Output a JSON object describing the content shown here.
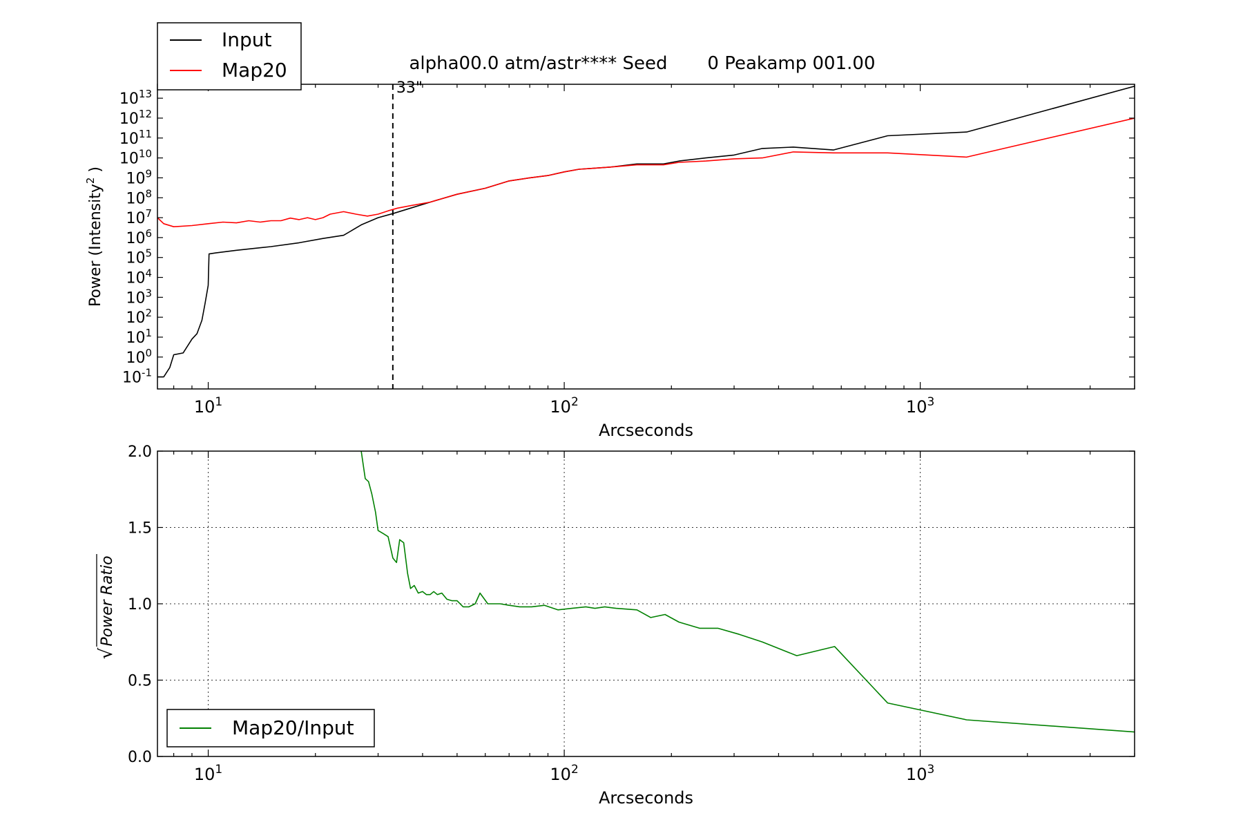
{
  "figure": {
    "title": "alpha00.0 atm/astr**** Seed       0 Peakamp 001.00"
  },
  "colors": {
    "input": "#000000",
    "map20": "#ff0000",
    "ratio": "#008000"
  },
  "chart_data": [
    {
      "type": "line",
      "title": "alpha00.0 atm/astr**** Seed       0 Peakamp 001.00",
      "xlabel": "Arcseconds",
      "ylabel": "Power (Intensity",
      "ylabel_sup": "2",
      "ylabel_tail": " )",
      "xscale": "log",
      "yscale": "log",
      "xlim": [
        7.2,
        4000
      ],
      "ylim": [
        0.025,
        50000000000000
      ],
      "grid": false,
      "legend": "top-left, outside axes",
      "xticks": [
        {
          "value": 10,
          "base": "10",
          "exp": "1"
        },
        {
          "value": 100,
          "base": "10",
          "exp": "2"
        },
        {
          "value": 1000,
          "base": "10",
          "exp": "3"
        }
      ],
      "yticks": [
        {
          "exp": -1,
          "label": "10",
          "sup": "-1"
        },
        {
          "exp": 0,
          "label": "10",
          "sup": "0"
        },
        {
          "exp": 1,
          "label": "10",
          "sup": "1"
        },
        {
          "exp": 2,
          "label": "10",
          "sup": "2"
        },
        {
          "exp": 3,
          "label": "10",
          "sup": "3"
        },
        {
          "exp": 4,
          "label": "10",
          "sup": "4"
        },
        {
          "exp": 5,
          "label": "10",
          "sup": "5"
        },
        {
          "exp": 6,
          "label": "10",
          "sup": "6"
        },
        {
          "exp": 7,
          "label": "10",
          "sup": "7"
        },
        {
          "exp": 8,
          "label": "10",
          "sup": "8"
        },
        {
          "exp": 9,
          "label": "10",
          "sup": "9"
        },
        {
          "exp": 10,
          "label": "10",
          "sup": "10"
        },
        {
          "exp": 11,
          "label": "10",
          "sup": "11"
        },
        {
          "exp": 12,
          "label": "10",
          "sup": "12"
        },
        {
          "exp": 13,
          "label": "10",
          "sup": "13"
        }
      ],
      "vline": {
        "x": 33,
        "label": "33\""
      },
      "series": [
        {
          "name": "Input",
          "color": "#000000",
          "x": [
            7.2,
            7.5,
            7.8,
            8.0,
            8.5,
            9.0,
            9.3,
            9.6,
            9.8,
            10.0,
            10.05,
            10.5,
            12,
            15,
            18,
            21,
            24,
            27,
            30,
            33,
            37,
            42,
            50,
            60,
            70,
            80,
            90,
            100,
            110,
            120,
            135,
            160,
            190,
            210,
            250,
            300,
            360,
            440,
            570,
            810,
            1350,
            4000
          ],
          "y": [
            0.1,
            0.1,
            0.3,
            1.3,
            1.6,
            8,
            15,
            70,
            500,
            4000,
            150000,
            170000,
            230000,
            350000,
            550000,
            900000,
            1300000,
            4500000,
            10000000,
            16000000,
            30000000,
            60000000,
            150000000,
            300000000,
            700000000,
            1000000000,
            1300000000,
            2000000000,
            2700000000,
            3000000000,
            3500000000,
            5000000000,
            5000000000,
            7000000000,
            10000000000,
            14000000000,
            30000000000,
            35000000000,
            25000000000,
            130000000000,
            200000000000,
            40000000000000
          ]
        },
        {
          "name": "Map20",
          "color": "#ff0000",
          "x": [
            7.2,
            7.5,
            8.0,
            9.0,
            10,
            11,
            12,
            13,
            14,
            15,
            16,
            17,
            18,
            19,
            20,
            21,
            22,
            24,
            26,
            28,
            30,
            32,
            34,
            37,
            42,
            50,
            60,
            70,
            80,
            90,
            100,
            110,
            120,
            135,
            160,
            190,
            210,
            250,
            300,
            360,
            440,
            570,
            810,
            1350,
            4000
          ],
          "y": [
            10000000,
            5000000,
            3500000,
            4000000,
            5000000,
            6000000,
            5500000,
            7000000,
            6000000,
            7000000,
            7000000,
            9500000,
            8000000,
            10000000,
            8000000,
            10000000,
            15000000,
            20000000,
            15000000,
            12000000,
            15000000,
            22000000,
            30000000,
            40000000,
            60000000,
            150000000,
            300000000,
            700000000,
            1000000000,
            1300000000,
            2000000000,
            2700000000,
            3000000000,
            3500000000,
            4500000000,
            4500000000,
            6000000000,
            7000000000,
            9000000000,
            10000000000,
            20000000000,
            18000000000,
            18000000000,
            11000000000,
            1000000000000
          ]
        }
      ]
    },
    {
      "type": "line",
      "xlabel": "Arcseconds",
      "ylabel": "Power Ratio",
      "ylabel_root": "√",
      "xscale": "log",
      "yscale": "linear",
      "xlim": [
        7.2,
        4000
      ],
      "ylim": [
        0,
        2
      ],
      "grid": true,
      "legend": "bottom-left",
      "xticks": [
        {
          "value": 10,
          "base": "10",
          "exp": "1"
        },
        {
          "value": 100,
          "base": "10",
          "exp": "2"
        },
        {
          "value": 1000,
          "base": "10",
          "exp": "3"
        }
      ],
      "yticks": [
        {
          "value": 0.0,
          "label": "0.0"
        },
        {
          "value": 0.5,
          "label": "0.5"
        },
        {
          "value": 1.0,
          "label": "1.0"
        },
        {
          "value": 1.5,
          "label": "1.5"
        },
        {
          "value": 2.0,
          "label": "2.0"
        }
      ],
      "series": [
        {
          "name": "Map20/Input",
          "color": "#008000",
          "x": [
            26.9,
            27.6,
            28.2,
            28.8,
            29.5,
            30.0,
            31.0,
            32.0,
            33.0,
            33.8,
            34.5,
            35.4,
            36.3,
            37.0,
            37.9,
            38.9,
            40.0,
            41.0,
            42.0,
            43.0,
            44.0,
            45.3,
            46.8,
            48.4,
            50.0,
            52.0,
            54.0,
            56.2,
            58.0,
            61.0,
            63.0,
            66.0,
            70.0,
            75.0,
            81.0,
            88.0,
            96.0,
            105.0,
            115.0,
            122.0,
            130.0,
            140.0,
            160.0,
            175.0,
            192.0,
            210.0,
            240.0,
            270.0,
            310.0,
            360.0,
            450.0,
            575.0,
            810.0,
            1350.0,
            4000.0
          ],
          "y": [
            2.0,
            1.82,
            1.8,
            1.72,
            1.6,
            1.48,
            1.46,
            1.44,
            1.3,
            1.27,
            1.42,
            1.4,
            1.2,
            1.1,
            1.12,
            1.07,
            1.08,
            1.06,
            1.06,
            1.08,
            1.06,
            1.07,
            1.03,
            1.02,
            1.02,
            0.98,
            0.98,
            1.0,
            1.07,
            1.0,
            1.0,
            1.0,
            0.99,
            0.98,
            0.98,
            0.99,
            0.96,
            0.97,
            0.98,
            0.97,
            0.98,
            0.97,
            0.96,
            0.91,
            0.93,
            0.88,
            0.84,
            0.84,
            0.8,
            0.75,
            0.66,
            0.72,
            0.35,
            0.24,
            0.16
          ]
        }
      ]
    }
  ]
}
